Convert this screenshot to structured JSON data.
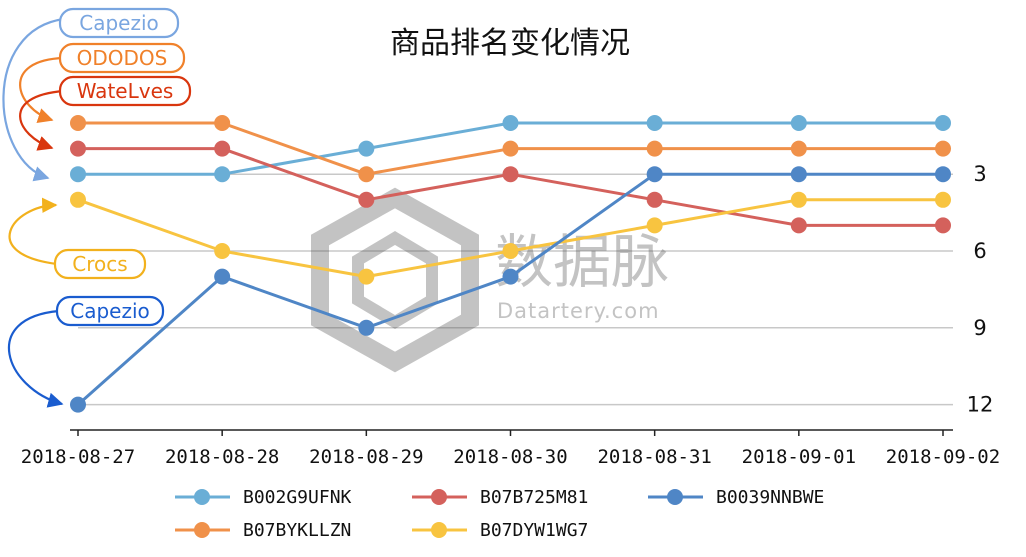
{
  "chart_data": {
    "type": "line",
    "title": "商品排名变化情况",
    "x": [
      "2018-08-27",
      "2018-08-28",
      "2018-08-29",
      "2018-08-30",
      "2018-08-31",
      "2018-09-01",
      "2018-09-02"
    ],
    "y_axis": {
      "ticks": [
        3,
        6,
        9,
        12
      ],
      "inverted": true,
      "position": "right",
      "grid": true
    },
    "series": [
      {
        "name": "B002G9UFNK",
        "color": "#6aaed6",
        "values": [
          3,
          3,
          2,
          1,
          1,
          1,
          1
        ]
      },
      {
        "name": "B07BYKLLZN",
        "color": "#f0914a",
        "values": [
          1,
          1,
          3,
          2,
          2,
          2,
          2
        ]
      },
      {
        "name": "B07B725M81",
        "color": "#d4615c",
        "values": [
          2,
          2,
          4,
          3,
          4,
          5,
          5
        ]
      },
      {
        "name": "B07DYW1WG7",
        "color": "#f8c440",
        "values": [
          4,
          6,
          7,
          6,
          5,
          4,
          4
        ]
      },
      {
        "name": "B0039NNBWE",
        "color": "#4f86c6",
        "values": [
          12,
          7,
          9,
          7,
          3,
          3,
          3
        ]
      }
    ],
    "legend": {
      "placement": "bottom",
      "items": [
        {
          "name": "B002G9UFNK",
          "color": "#6aaed6"
        },
        {
          "name": "B07B725M81",
          "color": "#d4615c"
        },
        {
          "name": "B0039NNBWE",
          "color": "#4f86c6"
        },
        {
          "name": "B07BYKLLZN",
          "color": "#f0914a"
        },
        {
          "name": "B07DYW1WG7",
          "color": "#f8c440"
        }
      ]
    },
    "annotations": [
      {
        "label": "Capezio",
        "color": "#7aa6e0",
        "target_x": "2018-08-27",
        "target_value": 3
      },
      {
        "label": "ODODOS",
        "color": "#f0812a",
        "target_x": "2018-08-27",
        "target_value": 1
      },
      {
        "label": "WateLves",
        "color": "#d9360e",
        "target_x": "2018-08-27",
        "target_value": 2
      },
      {
        "label": "Crocs",
        "color": "#f2b11d",
        "target_x": "2018-08-27",
        "target_value": 4
      },
      {
        "label": "Capezio",
        "color": "#1a5ccf",
        "target_x": "2018-08-27",
        "target_value": 12
      }
    ]
  },
  "watermark": {
    "brand": "数据脉",
    "domain": "Datartery.com"
  }
}
